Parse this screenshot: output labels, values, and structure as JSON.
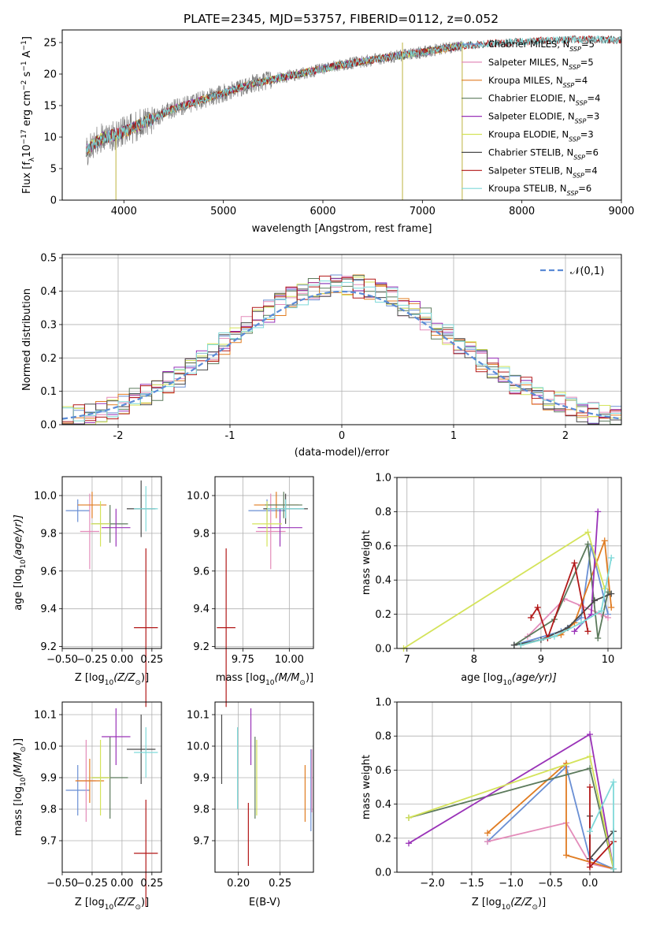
{
  "figure": {
    "title": "PLATE=2345, MJD=53757, FIBERID=0112, z=0.052"
  },
  "models": [
    {
      "name": "Chabrier MILES",
      "nssp": "5",
      "color": "#6a8fd4"
    },
    {
      "name": "Salpeter MILES",
      "nssp": "5",
      "color": "#e38cba"
    },
    {
      "name": "Kroupa MILES",
      "nssp": "4",
      "color": "#e07c22"
    },
    {
      "name": "Chabrier ELODIE",
      "nssp": "4",
      "color": "#5c7a5c"
    },
    {
      "name": "Salpeter ELODIE",
      "nssp": "3",
      "color": "#9a33b8"
    },
    {
      "name": "Kroupa ELODIE",
      "nssp": "3",
      "color": "#d4e35a"
    },
    {
      "name": "Chabrier STELIB",
      "nssp": "6",
      "color": "#4a4a4a"
    },
    {
      "name": "Salpeter STELIB",
      "nssp": "4",
      "color": "#b21818"
    },
    {
      "name": "Kroupa STELIB",
      "nssp": "6",
      "color": "#7fd9d9"
    }
  ],
  "chart_data": [
    {
      "id": "spectrum",
      "type": "line",
      "xlabel": "wavelength [Angstrom, rest frame]",
      "ylabel_text": "Flux [f",
      "ylabel_sub": "λ",
      "ylabel_rest": "10",
      "ylabel_sup1": "−17",
      "ylabel_mid": " erg cm",
      "ylabel_sup2": "−2",
      "ylabel_mid2": " s",
      "ylabel_sup3": "−1",
      "ylabel_mid3": " A",
      "ylabel_sup4": "−1",
      "ylabel_end": "]",
      "xlim": [
        3380,
        9000
      ],
      "ylim": [
        0,
        27
      ],
      "xticks": [
        4000,
        5000,
        6000,
        7000,
        8000,
        9000
      ],
      "yticks": [
        0,
        5,
        10,
        15,
        20,
        25
      ],
      "observed_color": "#808080",
      "continuum": [
        [
          3600,
          7.5
        ],
        [
          3700,
          9
        ],
        [
          3800,
          10
        ],
        [
          3950,
          10.5
        ],
        [
          4100,
          11.5
        ],
        [
          4300,
          13
        ],
        [
          4500,
          14.5
        ],
        [
          4800,
          16
        ],
        [
          5000,
          17
        ],
        [
          5300,
          18.5
        ],
        [
          5600,
          19.5
        ],
        [
          5900,
          20.5
        ],
        [
          6200,
          21.5
        ],
        [
          6600,
          22.5
        ],
        [
          7000,
          23.5
        ],
        [
          7400,
          24.5
        ],
        [
          7800,
          25
        ],
        [
          8200,
          25.3
        ],
        [
          8600,
          25.5
        ],
        [
          9000,
          25.4
        ]
      ],
      "legend_position": "upper-right"
    },
    {
      "id": "residuals",
      "type": "histogram",
      "xlabel": "(data-model)/error",
      "ylabel": "Normed distribution",
      "xlim": [
        -2.5,
        2.5
      ],
      "ylim": [
        0,
        0.51
      ],
      "xticks": [
        -2,
        -1,
        0,
        1,
        2
      ],
      "yticks": [
        0.0,
        0.1,
        0.2,
        0.3,
        0.4,
        0.5
      ],
      "grid": true,
      "bin_width": 0.1,
      "reference": {
        "label": "𝒩(0,1)",
        "mean": 0,
        "sigma": 1,
        "color": "#5b8bd6"
      },
      "legend_position": "upper-right"
    },
    {
      "id": "age-vs-Z",
      "type": "errorbar",
      "xlabel": "Z [log",
      "xlabel_sub": "10",
      "xlabel_rest": "(Z/Z",
      "xlabel_sub2": "⊙",
      "xlabel_end": ")]",
      "ylabel": "age  [log",
      "ylabel_sub": "10",
      "ylabel_end": "(age/yr)]",
      "xlim": [
        -0.5,
        0.33
      ],
      "ylim": [
        9.19,
        10.1
      ],
      "xticks": [
        "−0.50",
        "−0.25",
        "0.00",
        "0.25"
      ],
      "xtick_values": [
        -0.5,
        -0.25,
        0.0,
        0.25
      ],
      "yticks": [
        9.2,
        9.4,
        9.6,
        9.8,
        10.0
      ],
      "grid": true,
      "points": [
        {
          "x": -0.37,
          "y": 9.92,
          "xerr": 0.1,
          "yerr": 0.06
        },
        {
          "x": -0.27,
          "y": 9.81,
          "xerr": 0.08,
          "yerr": 0.2
        },
        {
          "x": -0.25,
          "y": 9.95,
          "xerr": 0.12,
          "yerr": 0.07
        },
        {
          "x": -0.1,
          "y": 9.85,
          "xerr": 0.15,
          "yerr": 0.1
        },
        {
          "x": -0.05,
          "y": 9.83,
          "xerr": 0.12,
          "yerr": 0.1
        },
        {
          "x": -0.18,
          "y": 9.85,
          "xerr": 0.08,
          "yerr": 0.12
        },
        {
          "x": 0.16,
          "y": 9.93,
          "xerr": 0.12,
          "yerr": 0.15
        },
        {
          "x": 0.2,
          "y": 9.3,
          "xerr": 0.1,
          "yerr": 0.42
        },
        {
          "x": 0.2,
          "y": 9.93,
          "xerr": 0.1,
          "yerr": 0.12
        }
      ]
    },
    {
      "id": "age-vs-mass",
      "type": "errorbar",
      "xlabel": "mass [log",
      "xlabel_sub": "10",
      "xlabel_rest": "(M/M",
      "xlabel_sub2": "⊙",
      "xlabel_end": ")]",
      "xlim": [
        9.6,
        10.13
      ],
      "ylim": [
        9.19,
        10.1
      ],
      "xticks": [
        "9.75",
        "10.00"
      ],
      "xtick_values": [
        9.75,
        10.0
      ],
      "yticks": [
        9.2,
        9.4,
        9.6,
        9.8,
        10.0
      ],
      "grid": true,
      "points": [
        {
          "x": 9.88,
          "y": 9.92,
          "xerr": 0.1,
          "yerr": 0.06
        },
        {
          "x": 9.9,
          "y": 9.81,
          "xerr": 0.08,
          "yerr": 0.2
        },
        {
          "x": 9.93,
          "y": 9.95,
          "xerr": 0.12,
          "yerr": 0.07
        },
        {
          "x": 9.97,
          "y": 9.95,
          "xerr": 0.1,
          "yerr": 0.07
        },
        {
          "x": 9.95,
          "y": 9.83,
          "xerr": 0.12,
          "yerr": 0.1
        },
        {
          "x": 9.88,
          "y": 9.85,
          "xerr": 0.08,
          "yerr": 0.12
        },
        {
          "x": 9.98,
          "y": 9.93,
          "xerr": 0.12,
          "yerr": 0.08
        },
        {
          "x": 9.66,
          "y": 9.3,
          "xerr": 0.05,
          "yerr": 0.42
        },
        {
          "x": 9.98,
          "y": 9.93,
          "xerr": 0.1,
          "yerr": 0.05
        }
      ]
    },
    {
      "id": "weight-vs-age",
      "type": "line",
      "xlabel": "age  [log",
      "xlabel_sub": "10",
      "xlabel_end": "(age/yr)]",
      "ylabel": "mass weight",
      "xlim": [
        6.85,
        10.2
      ],
      "ylim": [
        0,
        1
      ],
      "xticks": [
        7,
        8,
        9,
        10
      ],
      "yticks": [
        0.0,
        0.2,
        0.4,
        0.6,
        0.8,
        1.0
      ],
      "grid": true,
      "series": [
        {
          "x": [
            8.6,
            9.3,
            9.6,
            9.75,
            10.0
          ],
          "y": [
            0.02,
            0.1,
            0.18,
            0.6,
            0.2
          ]
        },
        {
          "x": [
            8.8,
            9.35,
            9.6,
            9.9,
            10.0
          ],
          "y": [
            0.07,
            0.29,
            0.25,
            0.2,
            0.18
          ]
        },
        {
          "x": [
            8.7,
            9.3,
            9.5,
            9.95,
            10.05
          ],
          "y": [
            0.02,
            0.08,
            0.15,
            0.63,
            0.24
          ]
        },
        {
          "x": [
            8.6,
            9.2,
            9.7,
            9.85,
            10.0
          ],
          "y": [
            0.02,
            0.17,
            0.61,
            0.06,
            0.33
          ]
        },
        {
          "x": [
            9.5,
            9.75,
            9.85
          ],
          "y": [
            0.1,
            0.2,
            0.8
          ]
        },
        {
          "x": [
            6.95,
            9.7,
            9.95
          ],
          "y": [
            0.0,
            0.68,
            0.35
          ]
        },
        {
          "x": [
            8.6,
            9.0,
            9.4,
            9.8,
            10.05
          ],
          "y": [
            0.02,
            0.05,
            0.12,
            0.28,
            0.32
          ]
        },
        {
          "x": [
            8.85,
            8.95,
            9.1,
            9.5,
            9.7
          ],
          "y": [
            0.18,
            0.24,
            0.06,
            0.5,
            0.1
          ]
        },
        {
          "x": [
            8.7,
            9.2,
            9.6,
            9.9,
            10.05
          ],
          "y": [
            0.02,
            0.07,
            0.15,
            0.22,
            0.53
          ]
        }
      ]
    },
    {
      "id": "mass-vs-Z",
      "type": "errorbar",
      "xlabel": "Z [log",
      "xlabel_sub": "10",
      "xlabel_rest": "(Z/Z",
      "xlabel_sub2": "⊙",
      "xlabel_end": ")]",
      "ylabel": "mass [log",
      "ylabel_sub": "10",
      "ylabel_end": "(M/M",
      "ylabel_sub2": "⊙",
      "ylabel_end2": ")]",
      "xlim": [
        -0.5,
        0.33
      ],
      "ylim": [
        9.6,
        10.14
      ],
      "xticks": [
        "−0.50",
        "−0.25",
        "0.00",
        "0.25"
      ],
      "xtick_values": [
        -0.5,
        -0.25,
        0.0,
        0.25
      ],
      "yticks": [
        9.7,
        9.8,
        9.9,
        10.0,
        10.1
      ],
      "grid": true,
      "points": [
        {
          "x": -0.37,
          "y": 9.86,
          "xerr": 0.1,
          "yerr": 0.08
        },
        {
          "x": -0.3,
          "y": 9.89,
          "xerr": 0.08,
          "yerr": 0.13
        },
        {
          "x": -0.27,
          "y": 9.89,
          "xerr": 0.12,
          "yerr": 0.07
        },
        {
          "x": -0.1,
          "y": 9.9,
          "xerr": 0.15,
          "yerr": 0.13
        },
        {
          "x": -0.05,
          "y": 10.03,
          "xerr": 0.12,
          "yerr": 0.09
        },
        {
          "x": -0.18,
          "y": 9.9,
          "xerr": 0.08,
          "yerr": 0.12
        },
        {
          "x": 0.16,
          "y": 9.99,
          "xerr": 0.12,
          "yerr": 0.11
        },
        {
          "x": 0.2,
          "y": 9.66,
          "xerr": 0.1,
          "yerr": 0.17
        },
        {
          "x": 0.2,
          "y": 9.98,
          "xerr": 0.1,
          "yerr": 0.08
        }
      ]
    },
    {
      "id": "mass-vs-ebv",
      "type": "errorbar",
      "xlabel": "E(B-V)",
      "xlim": [
        0.172,
        0.29
      ],
      "ylim": [
        9.6,
        10.14
      ],
      "xticks": [
        "0.20",
        "0.25"
      ],
      "xtick_values": [
        0.2,
        0.25
      ],
      "yticks": [
        9.7,
        9.8,
        9.9,
        10.0,
        10.1
      ],
      "grid": true,
      "points": [
        {
          "x": 0.287,
          "y": 9.86,
          "xerr": 0,
          "yerr": 0.13
        },
        {
          "x": 0.288,
          "y": 9.89,
          "xerr": 0,
          "yerr": 0.1
        },
        {
          "x": 0.28,
          "y": 9.85,
          "xerr": 0,
          "yerr": 0.09
        },
        {
          "x": 0.22,
          "y": 9.9,
          "xerr": 0,
          "yerr": 0.13
        },
        {
          "x": 0.215,
          "y": 10.03,
          "xerr": 0,
          "yerr": 0.09
        },
        {
          "x": 0.222,
          "y": 9.9,
          "xerr": 0,
          "yerr": 0.12
        },
        {
          "x": 0.18,
          "y": 9.99,
          "xerr": 0,
          "yerr": 0.11
        },
        {
          "x": 0.212,
          "y": 9.72,
          "xerr": 0,
          "yerr": 0.1
        },
        {
          "x": 0.199,
          "y": 9.93,
          "xerr": 0,
          "yerr": 0.13
        }
      ]
    },
    {
      "id": "weight-vs-Z",
      "type": "line",
      "xlabel": "Z [log",
      "xlabel_sub": "10",
      "xlabel_rest": "(Z/Z",
      "xlabel_sub2": "⊙",
      "xlabel_end": ")]",
      "ylabel": "mass weight",
      "xlim": [
        -2.45,
        0.4
      ],
      "ylim": [
        0,
        1
      ],
      "xticks": [
        "−2.0",
        "−1.5",
        "−1.0",
        "−0.5",
        "0.0"
      ],
      "xtick_values": [
        -2.0,
        -1.5,
        -1.0,
        -0.5,
        0.0
      ],
      "yticks": [
        0.0,
        0.2,
        0.4,
        0.6,
        0.8,
        1.0
      ],
      "grid": true,
      "series": [
        {
          "x": [
            -1.3,
            -0.3,
            0.0,
            0.3
          ],
          "y": [
            0.18,
            0.62,
            0.08,
            0.02
          ]
        },
        {
          "x": [
            -1.3,
            -0.3,
            0.0,
            0.3
          ],
          "y": [
            0.18,
            0.29,
            0.05,
            0.02
          ]
        },
        {
          "x": [
            -1.3,
            -0.3,
            -0.3,
            0.3
          ],
          "y": [
            0.23,
            0.64,
            0.1,
            0.02
          ]
        },
        {
          "x": [
            -2.3,
            0.0,
            0.3
          ],
          "y": [
            0.32,
            0.61,
            0.02
          ]
        },
        {
          "x": [
            -2.3,
            0.0,
            0.3
          ],
          "y": [
            0.17,
            0.81,
            0.02
          ]
        },
        {
          "x": [
            -2.3,
            0.0,
            0.3
          ],
          "y": [
            0.32,
            0.68,
            0.02
          ]
        },
        {
          "x": [
            0.0,
            0.0,
            0.3,
            0.3
          ],
          "y": [
            0.33,
            0.08,
            0.24,
            0.02
          ]
        },
        {
          "x": [
            0.0,
            0.0,
            0.3
          ],
          "y": [
            0.5,
            0.03,
            0.18
          ]
        },
        {
          "x": [
            0.0,
            0.3,
            0.3
          ],
          "y": [
            0.24,
            0.53,
            0.02
          ]
        }
      ]
    }
  ]
}
